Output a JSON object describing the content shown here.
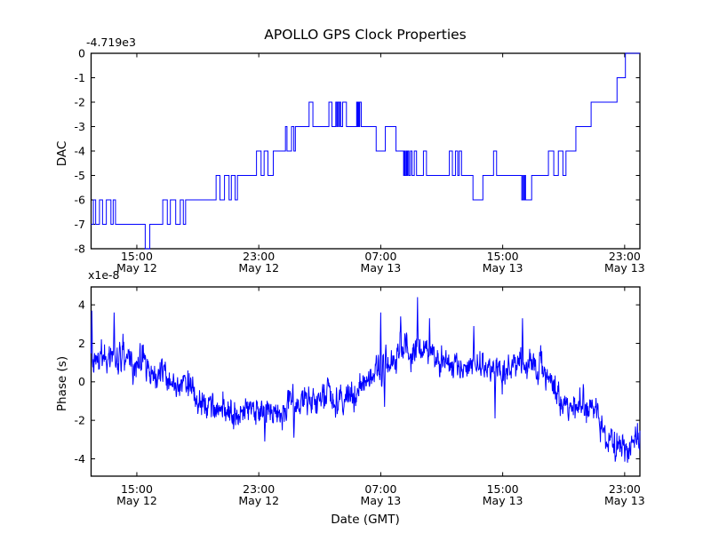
{
  "figure": {
    "title": "APOLLO GPS Clock Properties",
    "background_color": "#ffffff",
    "line_color": "#0000ff",
    "axis_color": "#000000"
  },
  "chart_data": [
    {
      "type": "line",
      "subtype": "step",
      "name": "dac",
      "title": "APOLLO GPS Clock Properties",
      "ylabel": "DAC",
      "offset_text": "-4.719e3",
      "line_color": "#0000ff",
      "ylim": [
        -8,
        0
      ],
      "ytick_values": [
        0,
        -1,
        -2,
        -3,
        -4,
        -5,
        -6,
        -7,
        -8
      ],
      "ytick_labels": [
        "0",
        "-1",
        "-2",
        "-3",
        "-4",
        "-5",
        "-6",
        "-7",
        "-8"
      ],
      "xlim_hours": [
        0,
        36
      ],
      "x_epoch": "hours since May 12 12:00 GMT",
      "xtick_hours": [
        3,
        11,
        19,
        27,
        35
      ],
      "xtick_labels": [
        [
          "15:00",
          "May 12"
        ],
        [
          "23:00",
          "May 12"
        ],
        [
          "07:00",
          "May 13"
        ],
        [
          "15:00",
          "May 13"
        ],
        [
          "23:00",
          "May 13"
        ]
      ],
      "grid": false,
      "steps": [
        [
          0,
          -7
        ],
        [
          0.15,
          -6
        ],
        [
          0.3,
          -7
        ],
        [
          0.55,
          -6
        ],
        [
          0.75,
          -7
        ],
        [
          1.0,
          -6
        ],
        [
          1.3,
          -7
        ],
        [
          1.45,
          -6
        ],
        [
          1.6,
          -7
        ],
        [
          3.55,
          -8
        ],
        [
          3.85,
          -7
        ],
        [
          4.7,
          -6
        ],
        [
          5.0,
          -7
        ],
        [
          5.2,
          -6
        ],
        [
          5.55,
          -7
        ],
        [
          5.85,
          -6
        ],
        [
          6.05,
          -7
        ],
        [
          6.2,
          -6
        ],
        [
          8.2,
          -5
        ],
        [
          8.45,
          -6
        ],
        [
          8.75,
          -5
        ],
        [
          9.05,
          -6
        ],
        [
          9.2,
          -5
        ],
        [
          9.45,
          -6
        ],
        [
          9.6,
          -5
        ],
        [
          10.85,
          -4
        ],
        [
          11.15,
          -5
        ],
        [
          11.35,
          -4
        ],
        [
          11.6,
          -5
        ],
        [
          11.95,
          -4
        ],
        [
          12.75,
          -3
        ],
        [
          12.85,
          -4
        ],
        [
          13.15,
          -3
        ],
        [
          13.3,
          -4
        ],
        [
          13.4,
          -3
        ],
        [
          14.3,
          -2
        ],
        [
          14.55,
          -3
        ],
        [
          15.6,
          -2
        ],
        [
          15.8,
          -3
        ],
        [
          16.05,
          -2
        ],
        [
          16.12,
          -3
        ],
        [
          16.17,
          -2
        ],
        [
          16.25,
          -3
        ],
        [
          16.3,
          -2
        ],
        [
          16.38,
          -3
        ],
        [
          16.5,
          -2
        ],
        [
          16.75,
          -3
        ],
        [
          17.42,
          -2
        ],
        [
          17.48,
          -3
        ],
        [
          17.52,
          -2
        ],
        [
          17.58,
          -3
        ],
        [
          17.62,
          -2
        ],
        [
          17.72,
          -3
        ],
        [
          18.7,
          -4
        ],
        [
          19.3,
          -3
        ],
        [
          20.0,
          -4
        ],
        [
          20.5,
          -5
        ],
        [
          20.55,
          -4
        ],
        [
          20.6,
          -5
        ],
        [
          20.67,
          -4
        ],
        [
          20.72,
          -5
        ],
        [
          20.78,
          -4
        ],
        [
          20.85,
          -5
        ],
        [
          20.95,
          -4
        ],
        [
          21.05,
          -5
        ],
        [
          21.2,
          -4
        ],
        [
          21.35,
          -5
        ],
        [
          21.8,
          -4
        ],
        [
          22.0,
          -5
        ],
        [
          23.5,
          -4
        ],
        [
          23.7,
          -5
        ],
        [
          23.9,
          -4
        ],
        [
          24.05,
          -5
        ],
        [
          24.15,
          -4
        ],
        [
          24.3,
          -5
        ],
        [
          25.05,
          -6
        ],
        [
          25.7,
          -5
        ],
        [
          26.4,
          -4
        ],
        [
          26.6,
          -5
        ],
        [
          28.25,
          -6
        ],
        [
          28.32,
          -5
        ],
        [
          28.38,
          -6
        ],
        [
          28.45,
          -5
        ],
        [
          28.5,
          -6
        ],
        [
          28.9,
          -5
        ],
        [
          30.0,
          -4
        ],
        [
          30.35,
          -5
        ],
        [
          30.65,
          -4
        ],
        [
          30.95,
          -5
        ],
        [
          31.15,
          -4
        ],
        [
          31.8,
          -3
        ],
        [
          32.8,
          -2
        ],
        [
          34.5,
          -1
        ],
        [
          35.05,
          0
        ],
        [
          36,
          0
        ]
      ]
    },
    {
      "type": "line",
      "subtype": "noisy",
      "name": "phase",
      "ylabel": "Phase (s)",
      "xlabel": "Date (GMT)",
      "offset_text": "x1e-8",
      "line_color": "#0000ff",
      "ylim": [
        -4.9,
        4.93
      ],
      "ytick_values": [
        4,
        2,
        0,
        -2,
        -4
      ],
      "ytick_labels": [
        "4",
        "2",
        "0",
        "-2",
        "-4"
      ],
      "xlim_hours": [
        0,
        36
      ],
      "x_epoch": "hours since May 12 12:00 GMT",
      "xtick_hours": [
        3,
        11,
        19,
        27,
        35
      ],
      "xtick_labels": [
        [
          "15:00",
          "May 12"
        ],
        [
          "23:00",
          "May 12"
        ],
        [
          "07:00",
          "May 13"
        ],
        [
          "15:00",
          "May 13"
        ],
        [
          "23:00",
          "May 13"
        ]
      ],
      "grid": false,
      "units": "1e-8 s",
      "trend_hourly": [
        1.6,
        1.4,
        1.2,
        1.3,
        1.0,
        0.5,
        0.0,
        -0.6,
        -1.1,
        -1.4,
        -1.5,
        -1.4,
        -1.3,
        -1.2,
        -1.0,
        -0.9,
        -0.8,
        -0.4,
        0.2,
        0.8,
        1.4,
        1.7,
        1.6,
        1.3,
        0.8,
        0.9,
        0.7,
        0.6,
        1.0,
        0.6,
        -0.1,
        -0.8,
        -1.3,
        -1.9,
        -2.7,
        -3.5,
        -2.9
      ],
      "spikes": [
        [
          0.05,
          3.7
        ],
        [
          1.5,
          3.6
        ],
        [
          11.4,
          -3.1
        ],
        [
          13.3,
          -2.9
        ],
        [
          19.0,
          3.6
        ],
        [
          19.25,
          -1.3
        ],
        [
          20.3,
          3.4
        ],
        [
          21.4,
          4.4
        ],
        [
          22.2,
          3.3
        ],
        [
          25.1,
          2.9
        ],
        [
          26.5,
          -1.9
        ],
        [
          28.3,
          3.3
        ],
        [
          35.2,
          -4.2
        ]
      ],
      "noise": {
        "seed": 1337,
        "sigma": 0.33,
        "ar": 0.4,
        "slow_sigma": 0.09,
        "slow_ar": 0.93,
        "samples": 1600
      }
    }
  ]
}
